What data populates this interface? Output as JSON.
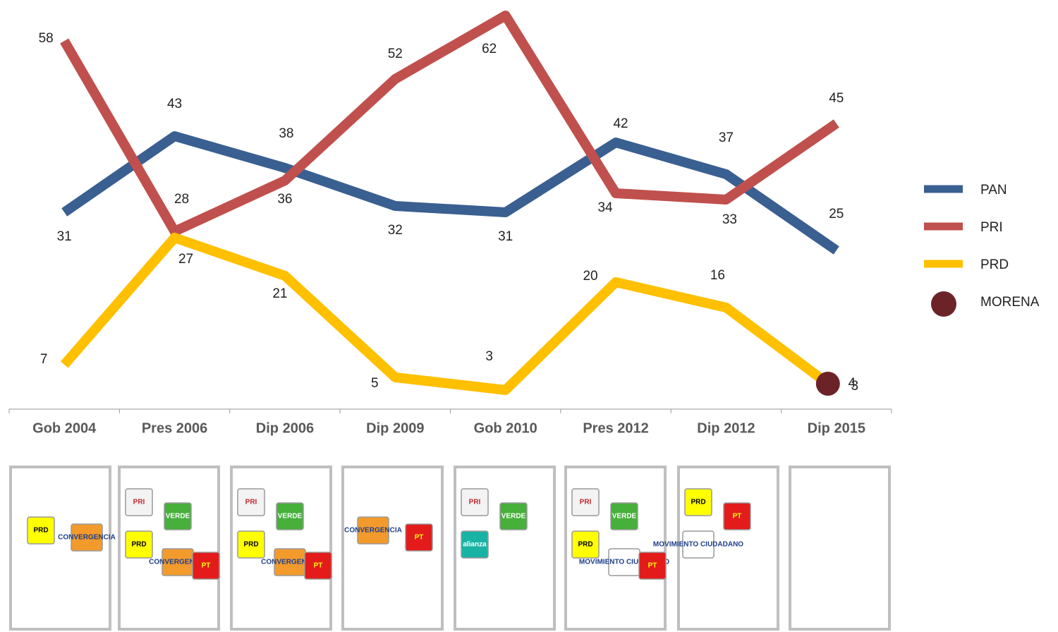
{
  "chart_data": {
    "type": "line",
    "categories": [
      "Gob 2004",
      "Pres 2006",
      "Dip 2006",
      "Dip 2009",
      "Gob 2010",
      "Pres 2012",
      "Dip 2012",
      "Dip 2015"
    ],
    "series": [
      {
        "name": "PAN",
        "color": "#3a5f91",
        "values": [
          31,
          43,
          38,
          32,
          31,
          42,
          37,
          25
        ]
      },
      {
        "name": "PRI",
        "color": "#c0504d",
        "values": [
          58,
          28,
          36,
          52,
          62,
          34,
          33,
          45
        ]
      },
      {
        "name": "PRD",
        "color": "#ffc000",
        "values": [
          7,
          27,
          21,
          5,
          3,
          20,
          16,
          3
        ]
      },
      {
        "name": "MORENA",
        "color": "#6b2328",
        "values": [
          null,
          null,
          null,
          null,
          null,
          null,
          null,
          4
        ]
      }
    ],
    "ylim": [
      0,
      64
    ],
    "legend": "right"
  },
  "coalitions": [
    [
      "PRD",
      "CONVERGENCIA"
    ],
    [
      "PRI",
      "VERDE",
      "PRD",
      "CONVERGENCIA",
      "PT"
    ],
    [
      "PRI",
      "VERDE",
      "PRD",
      "CONVERGENCIA",
      "PT"
    ],
    [
      "CONVERGENCIA",
      "PT"
    ],
    [
      "PRI",
      "VERDE",
      "alianza"
    ],
    [
      "PRI",
      "VERDE",
      "PRD",
      "MOVIMIENTO CIUDADANO",
      "PT"
    ],
    [
      "PRD",
      "PT",
      "MOVIMIENTO CIUDADANO"
    ],
    []
  ]
}
